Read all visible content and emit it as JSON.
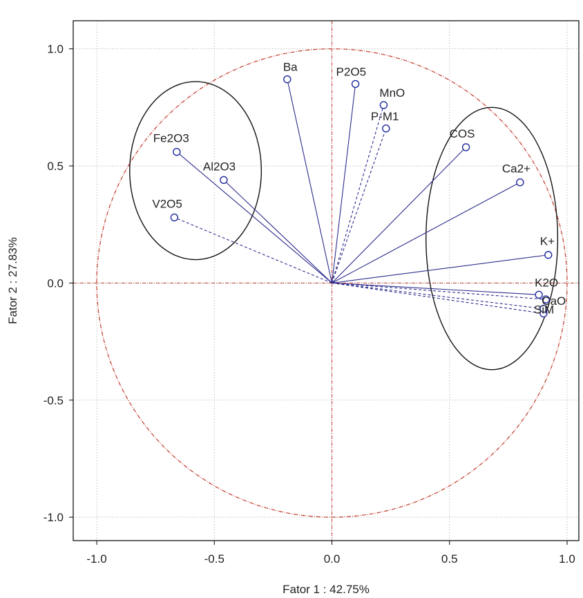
{
  "chart_data": {
    "type": "scatter",
    "title": "",
    "xlabel": "Fator 1 : 42.75%",
    "ylabel": "Fator 2 : 27.83%",
    "xlim": [
      -1.1,
      1.05
    ],
    "ylim": [
      -1.1,
      1.12
    ],
    "xticks": [
      -1.0,
      -0.5,
      0.0,
      0.5,
      1.0
    ],
    "yticks": [
      -1.0,
      -0.5,
      0.0,
      0.5,
      1.0
    ],
    "xtick_labels": [
      "-1.0",
      "-0.5",
      "0.0",
      "0.5",
      "1.0"
    ],
    "ytick_labels": [
      "-1.0",
      "-0.5",
      "0.0",
      "0.5",
      "1.0"
    ],
    "grid": true,
    "unit_circle": true,
    "points": [
      {
        "label": "Ba",
        "x": -0.19,
        "y": 0.87,
        "dashed": false
      },
      {
        "label": "P2O5",
        "x": 0.1,
        "y": 0.85,
        "dashed": false
      },
      {
        "label": "MnO",
        "x": 0.22,
        "y": 0.76,
        "dashed": true
      },
      {
        "label": "P-M1",
        "x": 0.23,
        "y": 0.66,
        "dashed": true
      },
      {
        "label": "COS",
        "x": 0.57,
        "y": 0.58,
        "dashed": false
      },
      {
        "label": "Ca2+",
        "x": 0.8,
        "y": 0.43,
        "dashed": false
      },
      {
        "label": "K+",
        "x": 0.92,
        "y": 0.12,
        "dashed": false
      },
      {
        "label": "K2O",
        "x": 0.88,
        "y": -0.05,
        "dashed": false
      },
      {
        "label": "CaO",
        "x": 0.91,
        "y": -0.07,
        "dashed": true
      },
      {
        "label": "SiM",
        "x": 0.9,
        "y": -0.13,
        "dashed": true
      },
      {
        "label": "",
        "x": 0.9,
        "y": -0.11,
        "dashed": true
      },
      {
        "label": "Fe2O3",
        "x": -0.66,
        "y": 0.56,
        "dashed": false
      },
      {
        "label": "Al2O3",
        "x": -0.46,
        "y": 0.44,
        "dashed": false
      },
      {
        "label": "V2O5",
        "x": -0.67,
        "y": 0.28,
        "dashed": true
      }
    ],
    "group_ellipses": [
      {
        "cx": -0.58,
        "cy": 0.48,
        "rx": 0.28,
        "ry": 0.38
      },
      {
        "cx": 0.68,
        "cy": 0.19,
        "rx": 0.28,
        "ry": 0.56
      }
    ],
    "colors": {
      "vector": "#2b2b8c",
      "marker": "#1f2a9c",
      "reference": "#c0392b",
      "grid": "#bfbfbf",
      "ellipse": "#111111"
    }
  }
}
